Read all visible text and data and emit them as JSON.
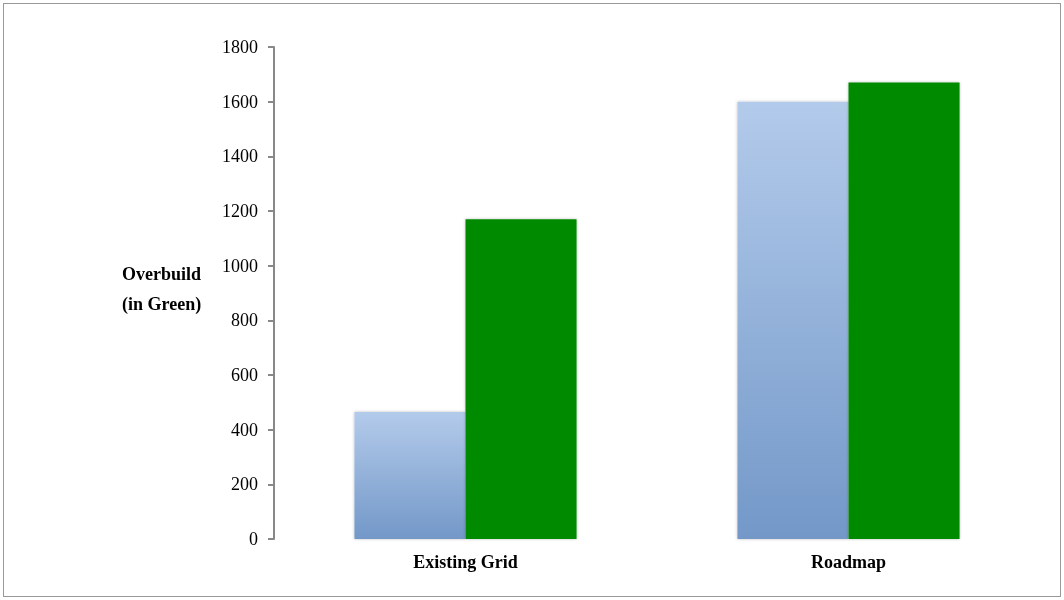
{
  "chart_data": {
    "type": "bar",
    "ylabel": "Overbuild (in Green)",
    "categories": [
      "Existing Grid",
      "Roadmap"
    ],
    "series": [
      {
        "color": "#80a9de",
        "values": [
          465,
          1600
        ]
      },
      {
        "color": "#008a00",
        "values": [
          1170,
          1670
        ]
      }
    ],
    "ylim": [
      0,
      1800
    ],
    "yticks": [
      0,
      200,
      400,
      600,
      800,
      1000,
      1200,
      1400,
      1600,
      1800
    ],
    "grid": false
  }
}
